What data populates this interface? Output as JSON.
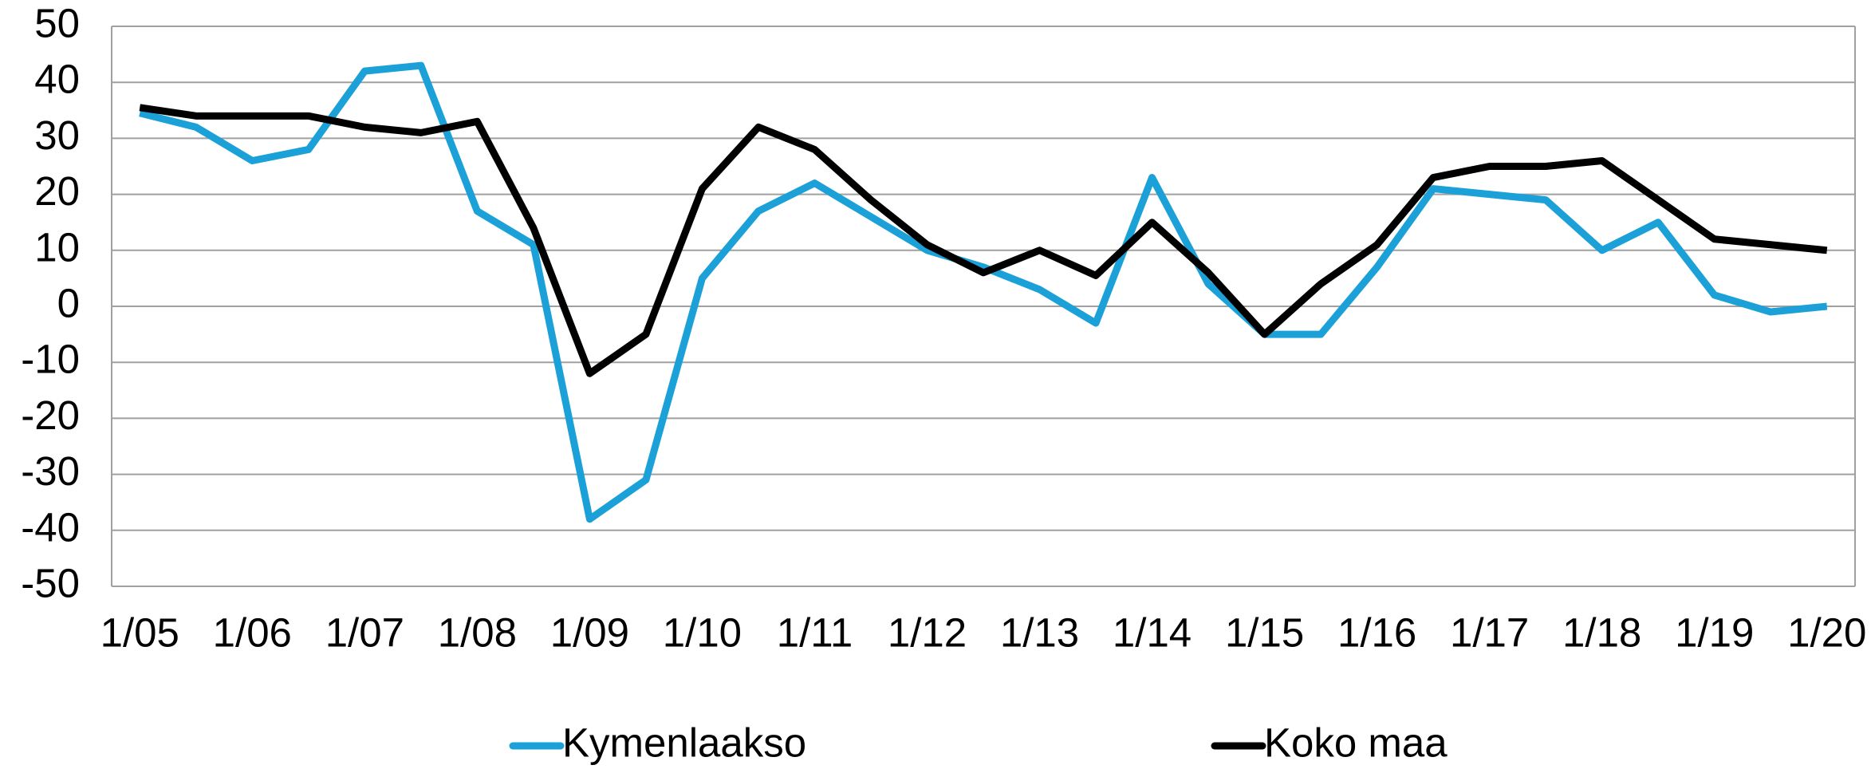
{
  "chart_data": {
    "type": "line",
    "categories": [
      "1/05",
      null,
      "1/06",
      null,
      "1/07",
      null,
      "1/08",
      null,
      "1/09",
      null,
      "1/10",
      null,
      "1/11",
      null,
      "1/12",
      null,
      "1/13",
      null,
      "1/14",
      null,
      "1/15",
      null,
      "1/16",
      null,
      "1/17",
      null,
      "1/18",
      null,
      "1/19",
      null,
      "1/20"
    ],
    "series": [
      {
        "name": "Kymenlaakso",
        "color": "#1ba1d8",
        "values": [
          34.5,
          32,
          26,
          28,
          42,
          43,
          17,
          11,
          -38,
          -31,
          5,
          17,
          22,
          16,
          10,
          7,
          3,
          -3,
          23,
          4,
          -5,
          -5,
          7,
          21,
          20,
          19,
          10,
          15,
          2,
          -1,
          0
        ]
      },
      {
        "name": "Koko maa",
        "color": "#000000",
        "values": [
          35.5,
          34,
          34,
          34,
          32,
          31,
          33,
          14,
          -12,
          -5,
          21,
          32,
          28,
          19,
          11,
          6,
          10,
          5.5,
          15,
          6,
          -5,
          4,
          11,
          23,
          25,
          25,
          26,
          19,
          12,
          11,
          10
        ]
      }
    ],
    "ylim": [
      -50,
      50
    ],
    "yticks": [
      -50,
      -40,
      -30,
      -20,
      -10,
      0,
      10,
      20,
      30,
      40,
      50
    ],
    "grid": true,
    "legend": "bottom"
  }
}
